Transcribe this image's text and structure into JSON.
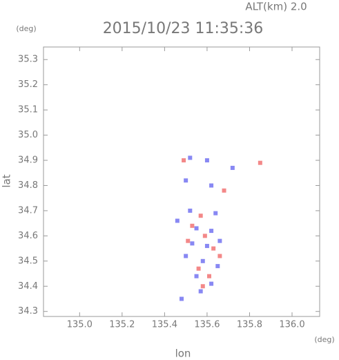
{
  "chart_data": {
    "type": "scatter",
    "title": "2015/10/23 11:35:36",
    "annotation": "ALT(km) 2.0",
    "y_unit": "(deg)",
    "x_unit": "(deg)",
    "x_label": "lon",
    "y_label": "lat",
    "xlim": [
      134.83,
      136.13
    ],
    "ylim": [
      34.28,
      35.35
    ],
    "xticks": [
      {
        "value": 135,
        "label": "135.0"
      },
      135.2,
      135.4,
      135.6,
      135.8,
      {
        "value": 136,
        "label": "136.0"
      }
    ],
    "yticks": [
      34.3,
      34.4,
      34.5,
      34.6,
      34.7,
      34.8,
      34.9,
      {
        "value": 35,
        "label": "35.0"
      },
      35.1,
      35.2,
      35.3
    ],
    "series": [
      {
        "color": "#6a6af0",
        "x": [
          135.52,
          135.6,
          135.5,
          135.62,
          135.72,
          135.46,
          135.55,
          135.62,
          135.53,
          135.6,
          135.66,
          135.5,
          135.58,
          135.65,
          135.55,
          135.62,
          135.48,
          135.57,
          135.52,
          135.64
        ],
        "values": [
          34.91,
          34.9,
          34.82,
          34.8,
          34.87,
          34.66,
          34.63,
          34.62,
          34.57,
          34.56,
          34.58,
          34.52,
          34.5,
          34.48,
          34.44,
          34.41,
          34.35,
          34.38,
          34.7,
          34.69
        ]
      },
      {
        "color": "#f06a6a",
        "x": [
          135.49,
          135.85,
          135.68,
          135.57,
          135.53,
          135.59,
          135.63,
          135.51,
          135.56,
          135.61,
          135.58,
          135.66
        ],
        "values": [
          34.9,
          34.89,
          34.78,
          34.68,
          34.64,
          34.6,
          34.55,
          34.58,
          34.47,
          34.44,
          34.4,
          34.52
        ]
      }
    ]
  }
}
